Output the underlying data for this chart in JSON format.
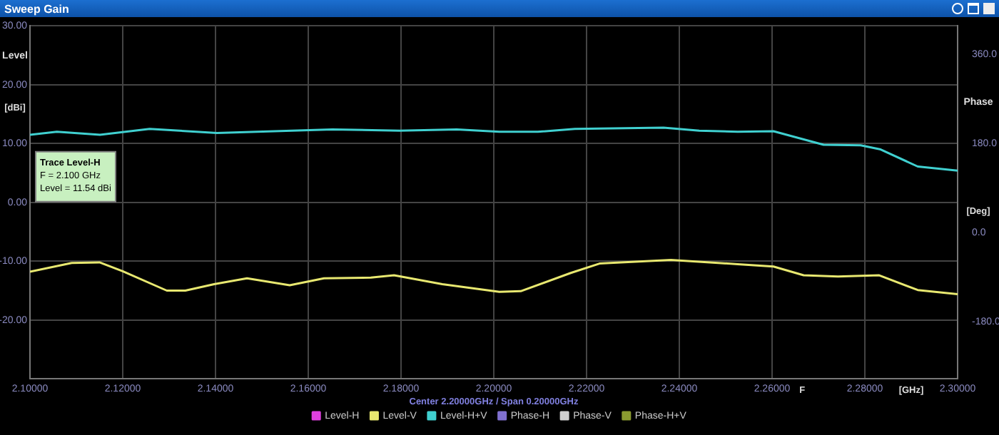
{
  "chart_data": {
    "type": "line",
    "title": "Sweep Gain",
    "ylabel": "Level",
    "y2label": "Phase",
    "annotations": [
      {
        "text": "Trace Level-H",
        "x": 2.1,
        "y": 11.54
      },
      "F = 2.100 GHz",
      "Level = 11.54 dBi",
      "[dBi]",
      "[Deg]",
      "F",
      "[GHz]",
      "Center 2.20000GHz / Span 0.20000GHz"
    ],
    "series": [
      {
        "name": "Level-H",
        "color": "#e040e0"
      },
      {
        "name": "Level-V",
        "color": "#e8e870",
        "x": [
          2.1,
          2.109,
          2.115,
          2.12,
          2.1295,
          2.1335,
          2.1397,
          2.1468,
          2.156,
          2.1634,
          2.1735,
          2.1785,
          2.1889,
          2.2012,
          2.2058,
          2.2166,
          2.2228,
          2.2382,
          2.2526,
          2.2603,
          2.2668,
          2.2742,
          2.2831,
          2.2914,
          2.3
        ],
        "values": [
          -11.8,
          -10.3,
          -10.2,
          -11.7,
          -15.0,
          -15.0,
          -13.9,
          -12.9,
          -14.1,
          -12.9,
          -12.8,
          -12.4,
          -13.9,
          -15.2,
          -15.1,
          -12.0,
          -10.4,
          -9.8,
          -10.5,
          -10.9,
          -12.4,
          -12.6,
          -12.4,
          -14.9,
          -15.6
        ]
      },
      {
        "name": "Level-H+V",
        "color": "#40d0d0",
        "x": [
          2.1,
          2.1058,
          2.1151,
          2.1258,
          2.1403,
          2.1652,
          2.1797,
          2.192,
          2.2012,
          2.2095,
          2.2175,
          2.2366,
          2.2443,
          2.2526,
          2.2603,
          2.2711,
          2.2791,
          2.2834,
          2.2914,
          2.3
        ],
        "values": [
          11.5,
          12.0,
          11.5,
          12.5,
          11.8,
          12.4,
          12.2,
          12.4,
          12.0,
          12.0,
          12.5,
          12.7,
          12.2,
          12.0,
          12.1,
          9.8,
          9.7,
          9.0,
          6.1,
          5.4
        ]
      },
      {
        "name": "Phase-H",
        "color": "#8070d0"
      },
      {
        "name": "Phase-V",
        "color": "#d0d0d0"
      },
      {
        "name": "Phase-H+V",
        "color": "#8a9a30"
      }
    ],
    "xlim": [
      2.1,
      2.3
    ],
    "xticks": [
      {
        "value": 2.1,
        "label": "2.10000"
      },
      {
        "value": 2.12,
        "label": "2.12000"
      },
      {
        "value": 2.14,
        "label": "2.14000"
      },
      {
        "value": 2.16,
        "label": "2.16000"
      },
      {
        "value": 2.18,
        "label": "2.18000"
      },
      {
        "value": 2.2,
        "label": "2.20000"
      },
      {
        "value": 2.22,
        "label": "2.22000"
      },
      {
        "value": 2.24,
        "label": "2.24000"
      },
      {
        "value": 2.26,
        "label": "2.26000"
      },
      {
        "value": 2.28,
        "label": "2.28000"
      },
      {
        "value": 2.3,
        "label": "2.30000"
      }
    ],
    "ylim": [
      -30,
      30
    ],
    "yticks": [
      {
        "value": 30,
        "label": "30.00"
      },
      {
        "value": 20,
        "label": "20.00"
      },
      {
        "value": 10,
        "label": "10.00"
      },
      {
        "value": 0,
        "label": "0.00"
      },
      {
        "value": -10,
        "label": "-10.00"
      },
      {
        "value": -20,
        "label": "-20.00"
      }
    ],
    "y2lim": [
      -296,
      418
    ],
    "y2ticks": [
      {
        "value": 360,
        "label": "360.0"
      },
      {
        "value": 180,
        "label": "180.0"
      },
      {
        "value": 0,
        "label": "0.0"
      },
      {
        "value": -180,
        "label": "-180.0"
      }
    ],
    "grid": true,
    "legend": "bottom"
  }
}
